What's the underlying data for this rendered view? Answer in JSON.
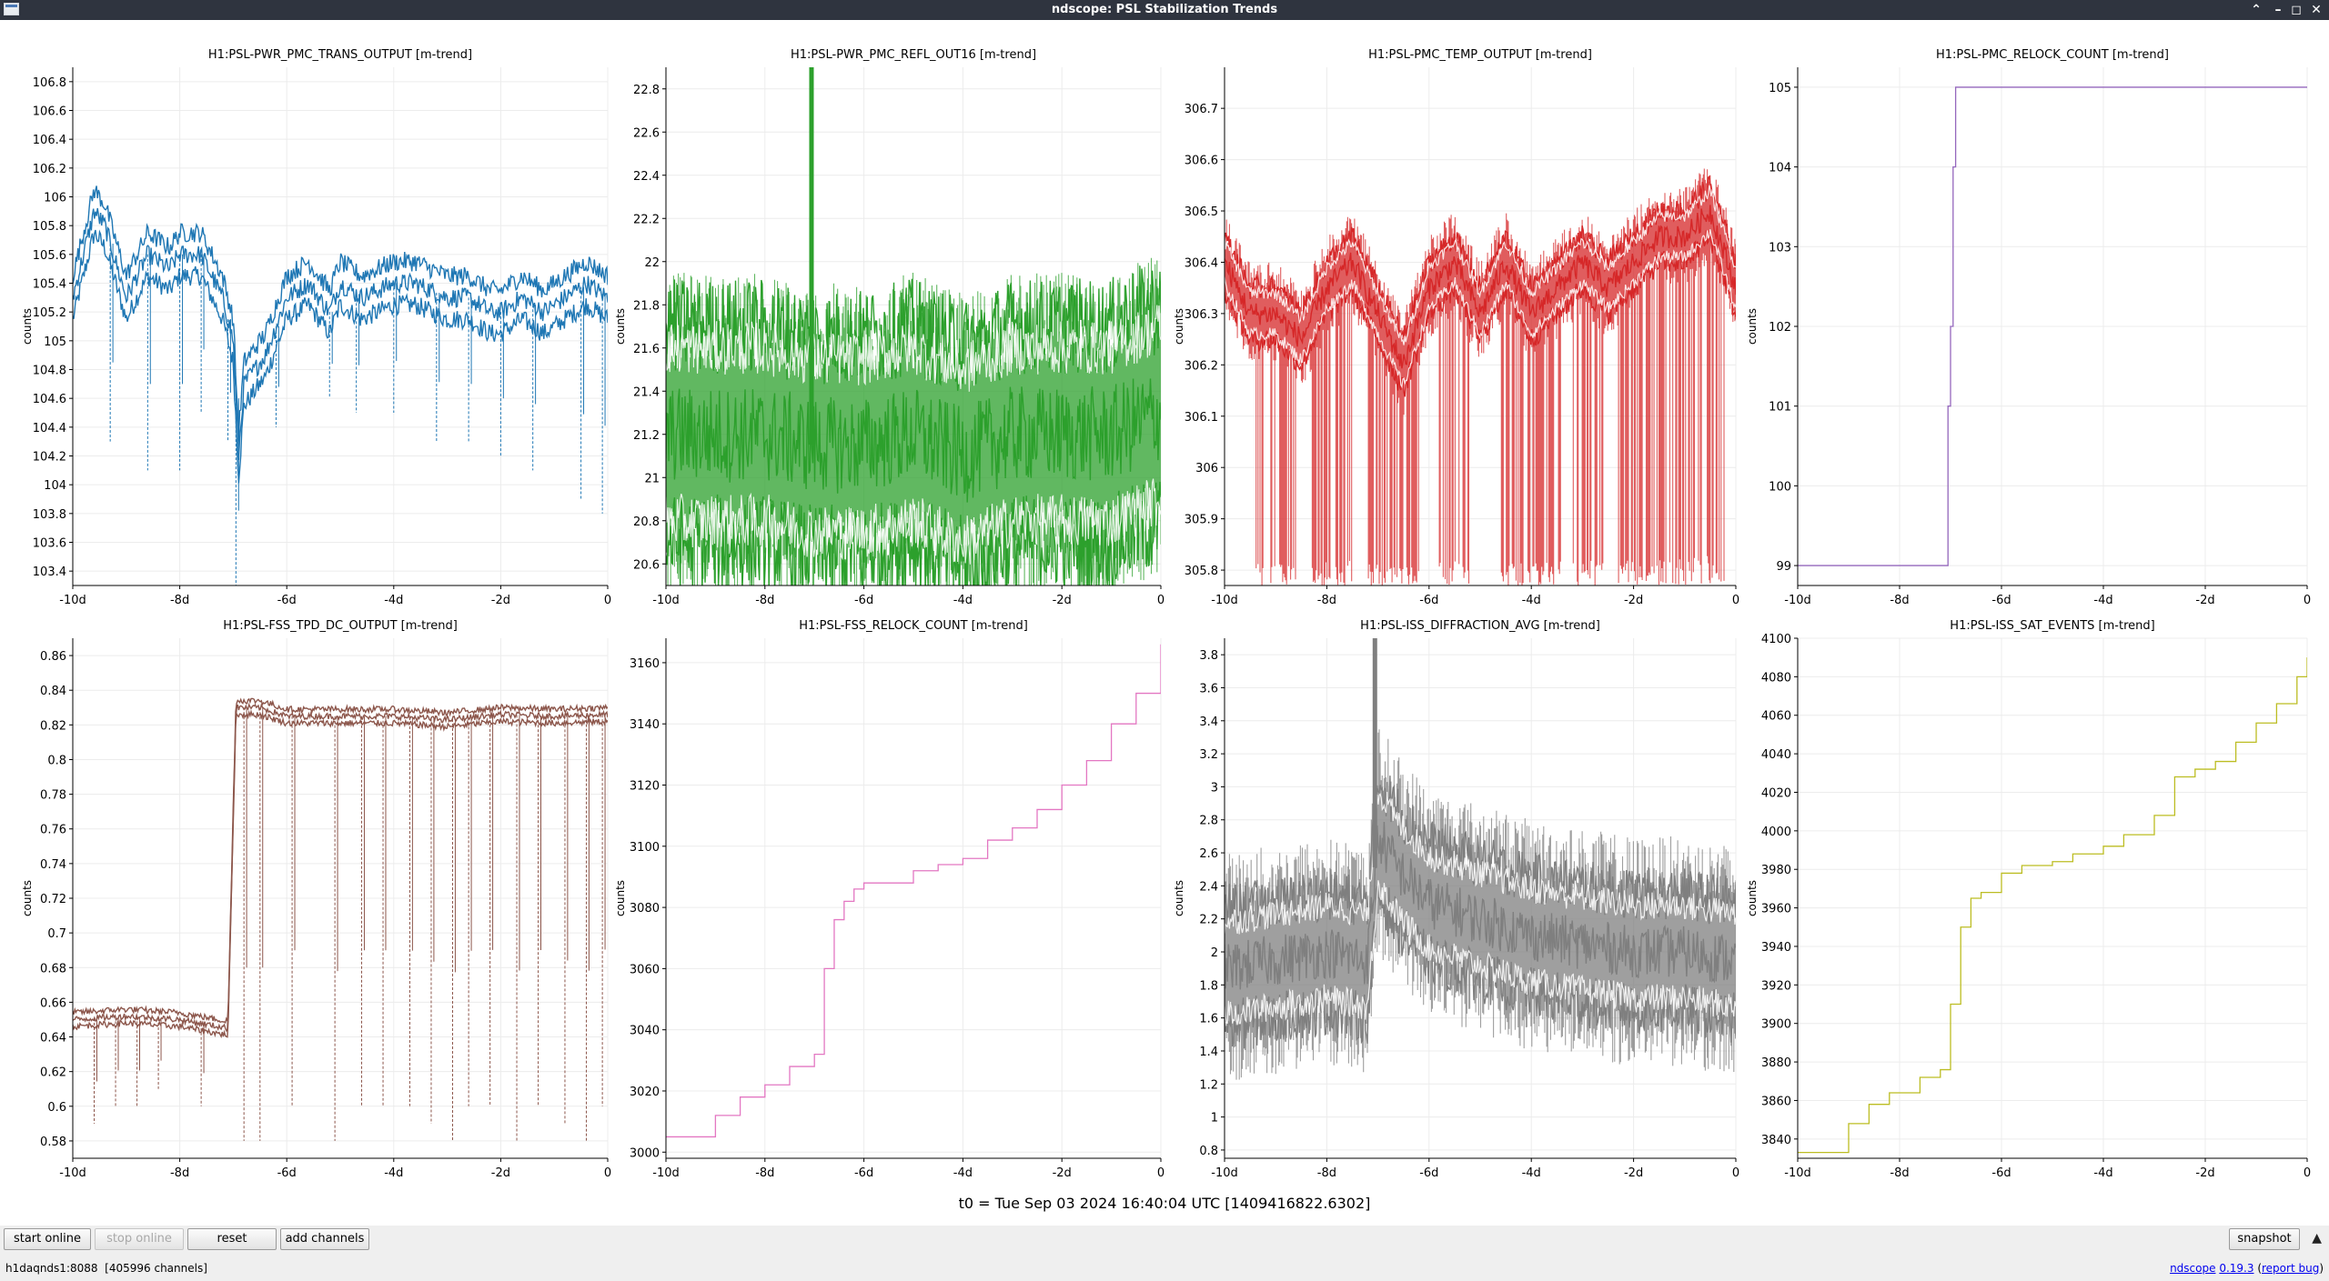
{
  "window": {
    "title": "ndscope: PSL Stabilization Trends"
  },
  "x_ticks": [
    "-10d",
    "-8d",
    "-6d",
    "-4d",
    "-2d",
    "0"
  ],
  "panels": [
    {
      "title": "H1:PSL-PWR_PMC_TRANS_OUTPUT [m-trend]",
      "ylabel": "counts",
      "color": "#1f77b4",
      "yticks": [
        "103.4",
        "103.6",
        "103.8",
        "104",
        "104.2",
        "104.4",
        "104.6",
        "104.8",
        "105",
        "105.2",
        "105.4",
        "105.6",
        "105.8",
        "106",
        "106.2",
        "106.4",
        "106.6",
        "106.8"
      ]
    },
    {
      "title": "H1:PSL-PWR_PMC_REFL_OUT16 [m-trend]",
      "ylabel": "counts",
      "color": "#2ca02c",
      "yticks": [
        "20.6",
        "20.8",
        "21",
        "21.2",
        "21.4",
        "21.6",
        "21.8",
        "22",
        "22.2",
        "22.4",
        "22.6",
        "22.8"
      ]
    },
    {
      "title": "H1:PSL-PMC_TEMP_OUTPUT [m-trend]",
      "ylabel": "counts",
      "color": "#d62728",
      "yticks": [
        "305.8",
        "305.9",
        "306",
        "306.1",
        "306.2",
        "306.3",
        "306.4",
        "306.5",
        "306.6",
        "306.7"
      ]
    },
    {
      "title": "H1:PSL-PMC_RELOCK_COUNT [m-trend]",
      "ylabel": "counts",
      "color": "#9467bd",
      "yticks": [
        "99",
        "100",
        "101",
        "102",
        "103",
        "104",
        "105"
      ]
    },
    {
      "title": "H1:PSL-FSS_TPD_DC_OUTPUT [m-trend]",
      "ylabel": "counts",
      "color": "#8c564b",
      "yticks": [
        "0.58",
        "0.6",
        "0.62",
        "0.64",
        "0.66",
        "0.68",
        "0.7",
        "0.72",
        "0.74",
        "0.76",
        "0.78",
        "0.8",
        "0.82",
        "0.84",
        "0.86"
      ]
    },
    {
      "title": "H1:PSL-FSS_RELOCK_COUNT [m-trend]",
      "ylabel": "counts",
      "color": "#e377c2",
      "yticks": [
        "3000",
        "3020",
        "3040",
        "3060",
        "3080",
        "3100",
        "3120",
        "3140",
        "3160"
      ]
    },
    {
      "title": "H1:PSL-ISS_DIFFRACTION_AVG [m-trend]",
      "ylabel": "counts",
      "color": "#7f7f7f",
      "yticks": [
        "0.8",
        "1",
        "1.2",
        "1.4",
        "1.6",
        "1.8",
        "2",
        "2.2",
        "2.4",
        "2.6",
        "2.8",
        "3",
        "3.2",
        "3.4",
        "3.6",
        "3.8"
      ]
    },
    {
      "title": "H1:PSL-ISS_SAT_EVENTS [m-trend]",
      "ylabel": "counts",
      "color": "#bcbd22",
      "yticks": [
        "3840",
        "3860",
        "3880",
        "3900",
        "3920",
        "3940",
        "3960",
        "3980",
        "4000",
        "4020",
        "4040",
        "4060",
        "4080",
        "4100"
      ]
    }
  ],
  "chart_data": [
    {
      "type": "line",
      "title": "H1:PSL-PWR_PMC_TRANS_OUTPUT [m-trend]",
      "ylabel": "counts",
      "ylim": [
        103.3,
        106.9
      ],
      "xlim": [
        -10,
        0
      ],
      "trend": {
        "x": [
          -10,
          -9.6,
          -9.4,
          -9,
          -8.6,
          -8.2,
          -8,
          -7.6,
          -7.2,
          -7,
          -6.9,
          -6.8,
          -6.6,
          -6.4,
          -6,
          -5.6,
          -5.2,
          -5,
          -4.6,
          -4,
          -3.6,
          -3,
          -2.6,
          -2.2,
          -2,
          -1.6,
          -1.2,
          -0.8,
          -0.4,
          0
        ],
        "y": [
          105.3,
          105.9,
          105.8,
          105.3,
          105.6,
          105.5,
          105.6,
          105.6,
          105.3,
          105,
          104.2,
          104.7,
          104.8,
          104.9,
          105.3,
          105.4,
          105.2,
          105.4,
          105.3,
          105.4,
          105.4,
          105.3,
          105.3,
          105.2,
          105.2,
          105.3,
          105.2,
          105.3,
          105.4,
          105.3
        ]
      },
      "band": 0.15,
      "dips": [
        [
          -9.3,
          104.3
        ],
        [
          -8.6,
          104.1
        ],
        [
          -8,
          104.1
        ],
        [
          -7.6,
          104.5
        ],
        [
          -7.1,
          104.3
        ],
        [
          -6.95,
          103.3
        ],
        [
          -6.2,
          104.4
        ],
        [
          -5.2,
          104.6
        ],
        [
          -4.7,
          104.5
        ],
        [
          -4,
          104.5
        ],
        [
          -3.2,
          104.3
        ],
        [
          -2.6,
          104.3
        ],
        [
          -2,
          104.2
        ],
        [
          -1.4,
          104.1
        ],
        [
          -0.5,
          103.9
        ],
        [
          -0.1,
          103.8
        ]
      ]
    },
    {
      "type": "line",
      "title": "H1:PSL-PWR_PMC_REFL_OUT16 [m-trend]",
      "ylabel": "counts",
      "ylim": [
        20.5,
        22.9
      ],
      "xlim": [
        -10,
        0
      ],
      "trend": {
        "x": [
          -10,
          -9,
          -8,
          -7,
          -6,
          -5,
          -4,
          -3,
          -2,
          -1,
          0
        ],
        "y": [
          21.2,
          21.2,
          21.2,
          21.15,
          21.15,
          21.2,
          21.1,
          21.2,
          21.2,
          21.2,
          21.3
        ]
      },
      "band": 0.5,
      "spread": 0.75,
      "spike": [
        -7.05,
        22.9
      ]
    },
    {
      "type": "line",
      "title": "H1:PSL-PMC_TEMP_OUTPUT [m-trend]",
      "ylabel": "counts",
      "ylim": [
        305.77,
        306.78
      ],
      "xlim": [
        -10,
        0
      ],
      "trend": {
        "x": [
          -10,
          -9.5,
          -9,
          -8.5,
          -8,
          -7.5,
          -7,
          -6.5,
          -6,
          -5.5,
          -5,
          -4.5,
          -4,
          -3.5,
          -3,
          -2.5,
          -2,
          -1.5,
          -1,
          -0.5,
          0
        ],
        "y": [
          306.4,
          306.3,
          306.3,
          306.25,
          306.35,
          306.4,
          306.3,
          306.2,
          306.35,
          306.4,
          306.3,
          306.4,
          306.3,
          306.35,
          306.4,
          306.35,
          306.4,
          306.45,
          306.45,
          306.5,
          306.35
        ]
      },
      "band": 0.05,
      "spread": 0.1,
      "gaps": [
        [
          -9.4,
          -8.6
        ],
        [
          -8.3,
          -7.5
        ],
        [
          -7.2,
          -6.2
        ],
        [
          -5.8,
          -5.2
        ],
        [
          -4.6,
          -3.4
        ],
        [
          -3.2,
          -2.6
        ],
        [
          -2.3,
          -0.2
        ]
      ]
    },
    {
      "type": "line",
      "title": "H1:PSL-PMC_RELOCK_COUNT [m-trend]",
      "ylabel": "counts",
      "ylim": [
        98.75,
        105.25
      ],
      "xlim": [
        -10,
        0
      ],
      "steps": {
        "x": [
          -10,
          -7.05,
          -7.0,
          -6.95,
          -6.9,
          0
        ],
        "y": [
          99,
          101,
          102,
          104,
          105,
          105
        ]
      }
    },
    {
      "type": "line",
      "title": "H1:PSL-FSS_TPD_DC_OUTPUT [m-trend]",
      "ylabel": "counts",
      "ylim": [
        0.57,
        0.87
      ],
      "xlim": [
        -10,
        0
      ],
      "trend": {
        "x": [
          -10,
          -9,
          -8,
          -7.1,
          -6.95,
          -6.5,
          -6,
          -5,
          -4,
          -3,
          -2,
          -1,
          0
        ],
        "y": [
          0.65,
          0.652,
          0.65,
          0.645,
          0.83,
          0.83,
          0.825,
          0.825,
          0.825,
          0.823,
          0.826,
          0.825,
          0.826
        ]
      },
      "band": 0.004,
      "dips": [
        [
          -9.6,
          0.59
        ],
        [
          -9.2,
          0.6
        ],
        [
          -8.8,
          0.6
        ],
        [
          -8.4,
          0.61
        ],
        [
          -7.6,
          0.6
        ],
        [
          -6.8,
          0.58
        ],
        [
          -6.5,
          0.58
        ],
        [
          -5.9,
          0.6
        ],
        [
          -5.1,
          0.58
        ],
        [
          -4.6,
          0.6
        ],
        [
          -4.2,
          0.6
        ],
        [
          -3.7,
          0.6
        ],
        [
          -3.3,
          0.59
        ],
        [
          -2.9,
          0.58
        ],
        [
          -2.6,
          0.6
        ],
        [
          -2.2,
          0.6
        ],
        [
          -1.7,
          0.58
        ],
        [
          -1.3,
          0.6
        ],
        [
          -0.8,
          0.59
        ],
        [
          -0.4,
          0.58
        ],
        [
          -0.1,
          0.6
        ]
      ]
    },
    {
      "type": "line",
      "title": "H1:PSL-FSS_RELOCK_COUNT [m-trend]",
      "ylabel": "counts",
      "ylim": [
        2998,
        3168
      ],
      "xlim": [
        -10,
        0
      ],
      "steps": {
        "x": [
          -10,
          -9.5,
          -9,
          -8.5,
          -8,
          -7.5,
          -7,
          -6.8,
          -6.6,
          -6.4,
          -6.2,
          -6,
          -5.5,
          -5,
          -4.5,
          -4,
          -3.5,
          -3,
          -2.5,
          -2,
          -1.5,
          -1,
          -0.5,
          0
        ],
        "y": [
          3005,
          3005,
          3012,
          3018,
          3022,
          3028,
          3032,
          3060,
          3076,
          3082,
          3086,
          3088,
          3088,
          3092,
          3094,
          3096,
          3102,
          3106,
          3112,
          3120,
          3128,
          3140,
          3150,
          3166
        ]
      }
    },
    {
      "type": "line",
      "title": "H1:PSL-ISS_DIFFRACTION_AVG [m-trend]",
      "ylabel": "counts",
      "ylim": [
        0.75,
        3.9
      ],
      "xlim": [
        -10,
        0
      ],
      "trend": {
        "x": [
          -10,
          -9,
          -8,
          -7.2,
          -7,
          -6.6,
          -6,
          -5,
          -4,
          -3,
          -2,
          -1,
          0
        ],
        "y": [
          1.9,
          1.95,
          2.0,
          1.95,
          2.7,
          2.5,
          2.3,
          2.2,
          2.1,
          2.05,
          2.0,
          2.0,
          1.95
        ]
      },
      "band": 0.35,
      "spread": 0.7,
      "spike": [
        -7.05,
        3.9
      ]
    },
    {
      "type": "line",
      "title": "H1:PSL-ISS_SAT_EVENTS [m-trend]",
      "ylabel": "counts",
      "ylim": [
        3830,
        4100
      ],
      "xlim": [
        -10,
        0
      ],
      "steps": {
        "x": [
          -10,
          -9.4,
          -9,
          -8.6,
          -8.2,
          -7.6,
          -7.2,
          -7,
          -6.8,
          -6.6,
          -6.4,
          -6,
          -5.6,
          -5,
          -4.6,
          -4,
          -3.6,
          -3,
          -2.6,
          -2.2,
          -1.8,
          -1.4,
          -1,
          -0.6,
          -0.2,
          0
        ],
        "y": [
          3833,
          3833,
          3848,
          3858,
          3864,
          3872,
          3876,
          3910,
          3950,
          3965,
          3968,
          3978,
          3982,
          3984,
          3988,
          3992,
          3998,
          4008,
          4028,
          4032,
          4036,
          4046,
          4056,
          4066,
          4080,
          4090
        ]
      }
    }
  ],
  "t0_label": "t0 = Tue Sep 03 2024 16:40:04 UTC [1409416822.6302]",
  "buttons": {
    "start_online": "start online",
    "stop_online": "stop online",
    "reset": "reset",
    "add_channels": "add channels",
    "snapshot": "snapshot"
  },
  "status": {
    "server": "h1daqnds1:8088",
    "channels": "[405996 channels]",
    "app_name": "ndscope",
    "version": "0.19.3",
    "report_open": "(",
    "report_bug": "report bug",
    "report_close": ")"
  },
  "icons": {
    "app": "ndscope-window-icon",
    "minimize": "minimize-icon",
    "maximize": "maximize-icon",
    "restore": "restore-icon",
    "close": "close-icon",
    "expand": "chevron-up-icon"
  }
}
